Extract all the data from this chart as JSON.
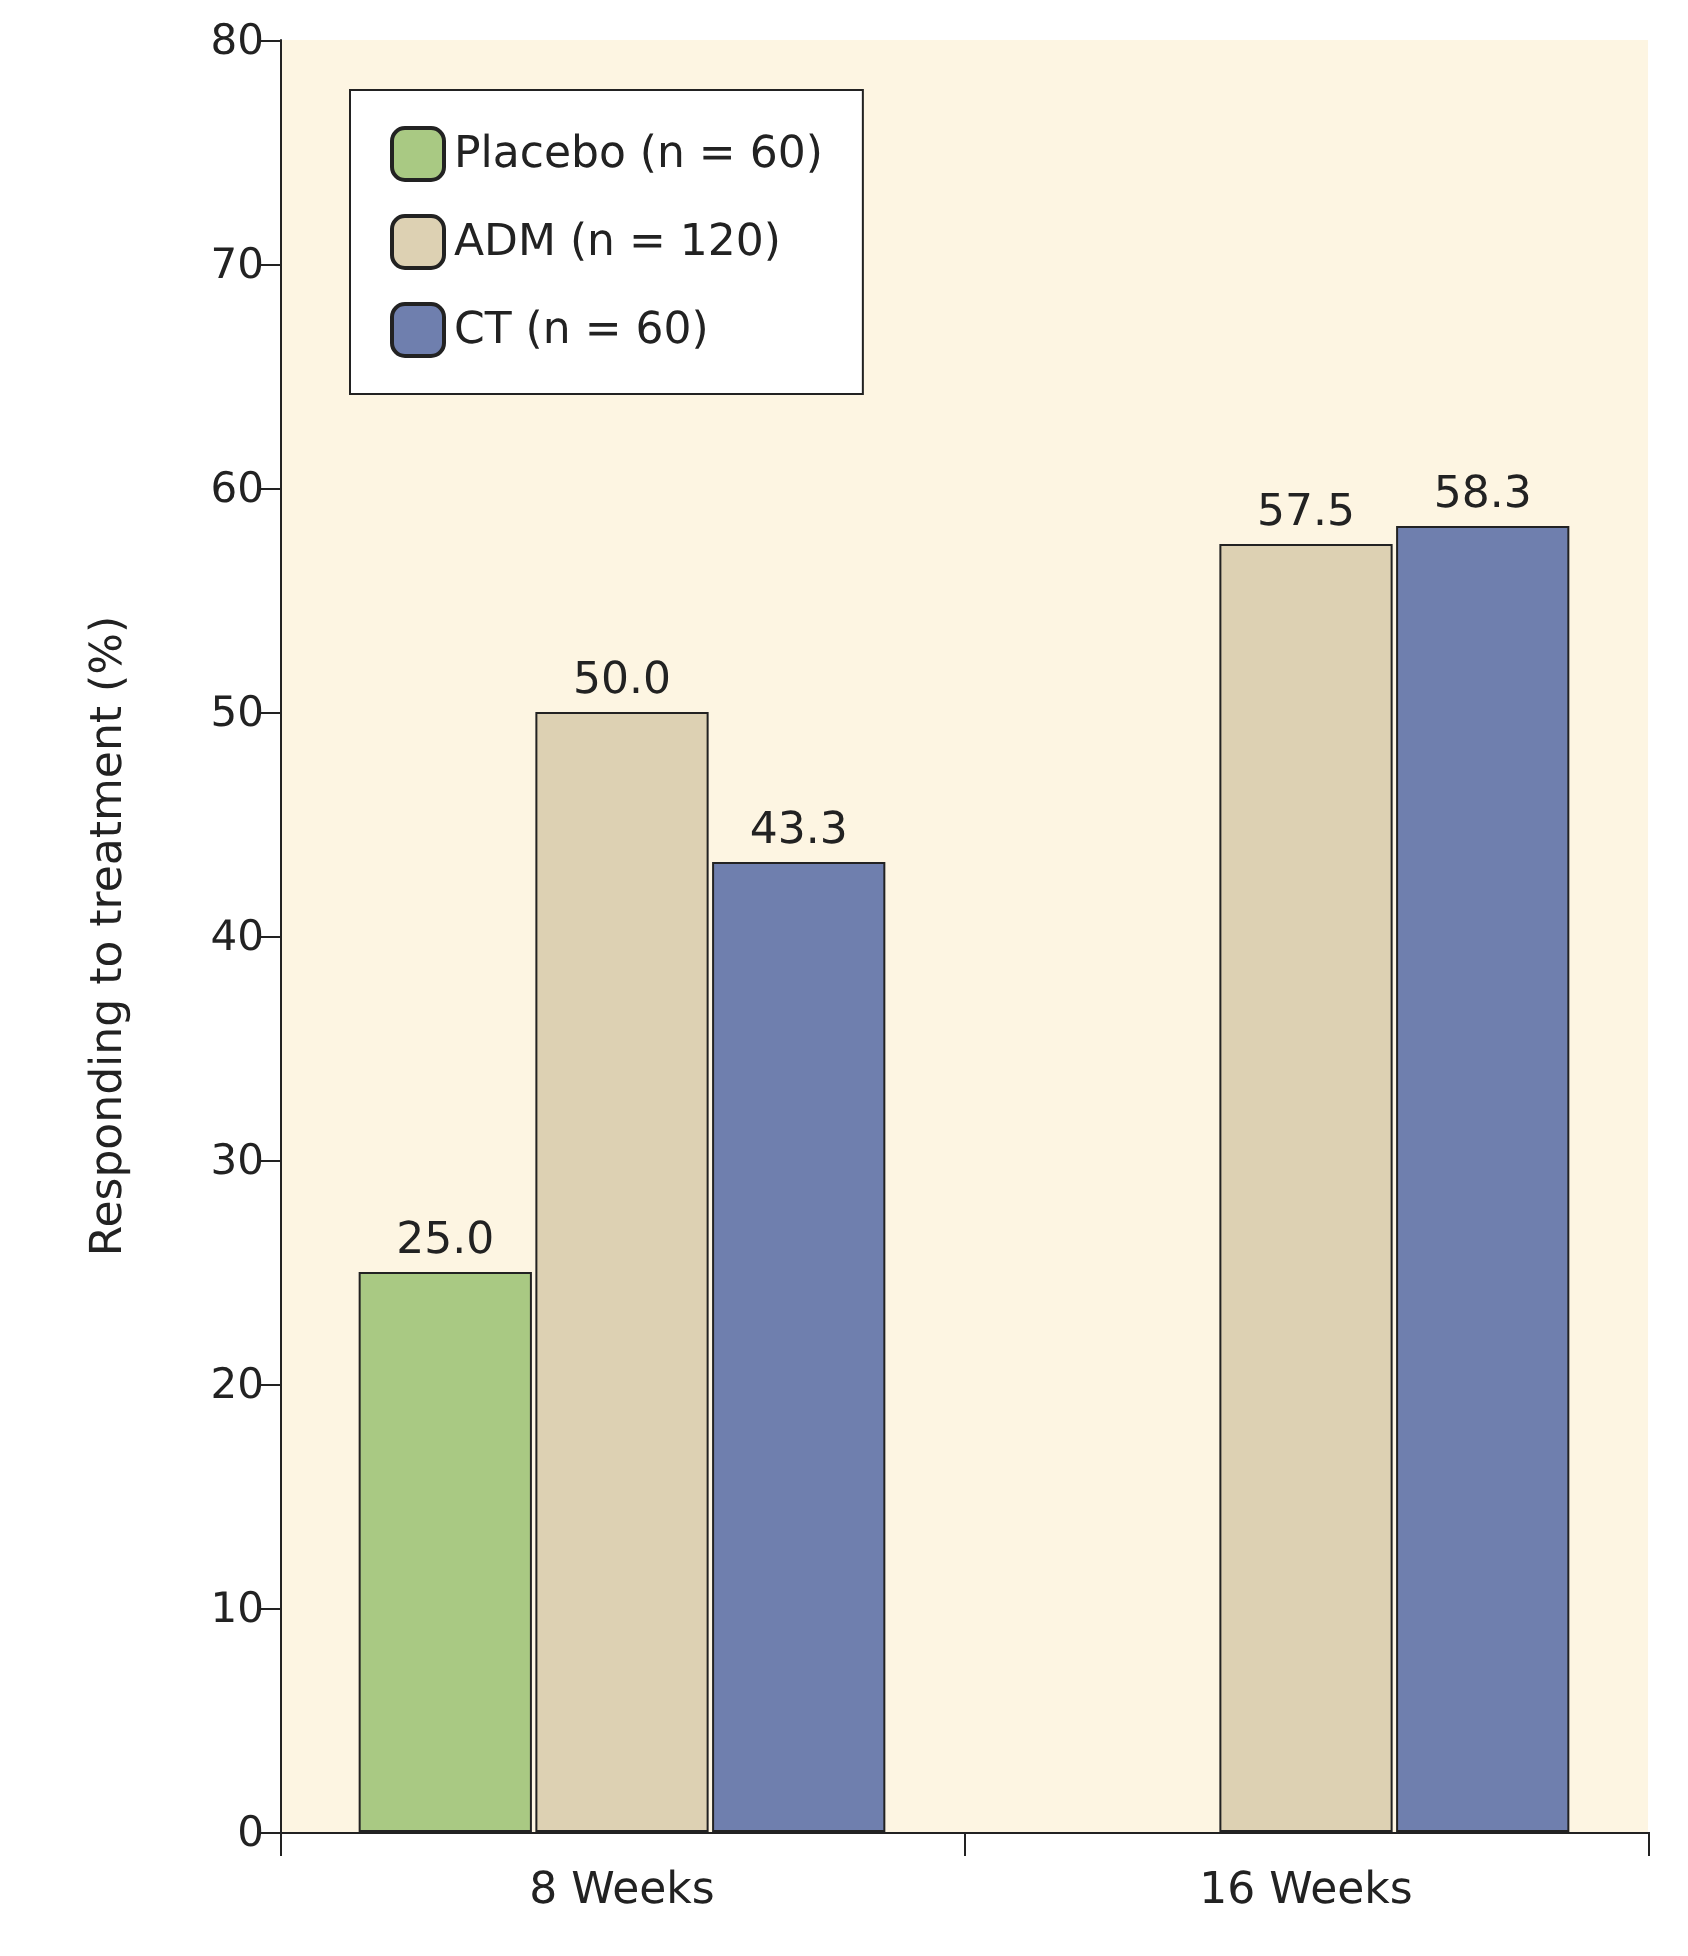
{
  "chart_data": {
    "type": "bar",
    "ylabel": "Responding to treatment (%)",
    "categories": [
      "8 Weeks",
      "16 Weeks"
    ],
    "series": [
      {
        "name": "Placebo (n = 60)",
        "color": "#a9c983",
        "values": [
          25.0,
          null
        ],
        "value_labels": [
          "25.0",
          null
        ]
      },
      {
        "name": "ADM (n = 120)",
        "color": "#ddd1b3",
        "values": [
          50.0,
          57.5
        ],
        "value_labels": [
          "50.0",
          "57.5"
        ]
      },
      {
        "name": "CT (n = 60)",
        "color": "#6f7fae",
        "values": [
          43.3,
          58.3
        ],
        "value_labels": [
          "43.3",
          "58.3"
        ]
      }
    ],
    "ylim": [
      0,
      80
    ],
    "yticks": [
      0,
      10,
      20,
      30,
      40,
      50,
      60,
      70,
      80
    ],
    "grid": false,
    "legend": "top left"
  }
}
